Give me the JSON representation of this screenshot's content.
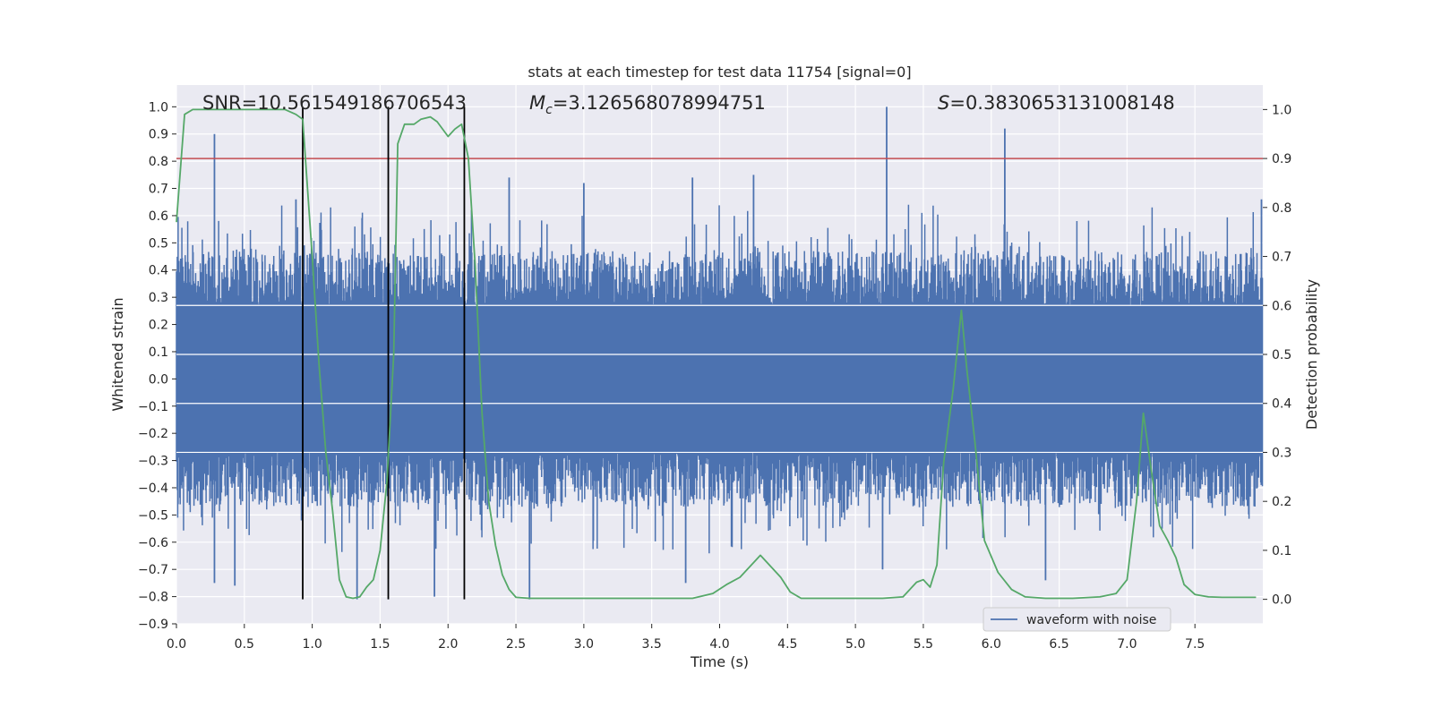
{
  "chart_data": {
    "type": "line",
    "title": "stats at each timestep for test data 11754 [signal=0]",
    "xlabel": "Time (s)",
    "ylabel_left": "Whitened strain",
    "ylabel_right": "Detection probability",
    "xlim": [
      0,
      8
    ],
    "ylim_left": [
      -0.9,
      1.08
    ],
    "ylim_right": [
      -0.05,
      1.05
    ],
    "x_ticks": [
      0.0,
      0.5,
      1.0,
      1.5,
      2.0,
      2.5,
      3.0,
      3.5,
      4.0,
      4.5,
      5.0,
      5.5,
      6.0,
      6.5,
      7.0,
      7.5
    ],
    "x_tick_labels": [
      "0.0",
      "0.5",
      "1.0",
      "1.5",
      "2.0",
      "2.5",
      "3.0",
      "3.5",
      "4.0",
      "4.5",
      "5.0",
      "5.5",
      "6.0",
      "6.5",
      "7.0",
      "7.5"
    ],
    "y_left_ticks": [
      1.0,
      0.9,
      0.8,
      0.7,
      0.6,
      0.5,
      0.4,
      0.3,
      0.2,
      0.1,
      0.0,
      -0.1,
      -0.2,
      -0.3,
      -0.4,
      -0.5,
      -0.6,
      -0.7,
      -0.8,
      -0.9
    ],
    "y_left_tick_labels": [
      "1.0",
      "0.9",
      "0.8",
      "0.7",
      "0.6",
      "0.5",
      "0.4",
      "0.3",
      "0.2",
      "0.1",
      "0.0",
      "−0.1",
      "−0.2",
      "−0.3",
      "−0.4",
      "−0.5",
      "−0.6",
      "−0.7",
      "−0.8",
      "−0.9"
    ],
    "y_right_ticks": [
      1.0,
      0.9,
      0.8,
      0.7,
      0.6,
      0.5,
      0.4,
      0.3,
      0.2,
      0.1,
      0.0
    ],
    "y_right_tick_labels": [
      "1.0",
      "0.9",
      "0.8",
      "0.7",
      "0.6",
      "0.5",
      "0.4",
      "0.3",
      "0.2",
      "0.1",
      "0.0"
    ],
    "grid": true,
    "annotations": {
      "snr": "SNR=10.561549186706543",
      "mc_symbol": "M",
      "mc_sub": "c",
      "mc_value": "=3.126568078994751",
      "s_symbol": "S",
      "s_value": "=0.3830653131008148"
    },
    "legend": {
      "placement": "lower-right",
      "entries": [
        "waveform with noise"
      ]
    },
    "threshold_line": {
      "value": 0.9,
      "axis": "right",
      "color": "#c44e52"
    },
    "vertical_markers": {
      "x": [
        0.93,
        1.56,
        2.12
      ],
      "y_top": 1.0,
      "y_bottom": -0.81,
      "color": "#000000"
    },
    "series": [
      {
        "name": "waveform with noise",
        "axis": "left",
        "color": "#4c72b0",
        "envelope_core": [
          -0.27,
          0.27
        ],
        "noise_amplitude": 0.45,
        "spikes": [
          {
            "x": 0.28,
            "y": 0.9
          },
          {
            "x": 5.23,
            "y": 1.0
          },
          {
            "x": 6.1,
            "y": 0.92
          },
          {
            "x": 1.33,
            "y": -0.81
          },
          {
            "x": 2.6,
            "y": -0.81
          },
          {
            "x": 0.43,
            "y": -0.76
          },
          {
            "x": 0.28,
            "y": -0.75
          },
          {
            "x": 3.75,
            "y": -0.75
          },
          {
            "x": 1.9,
            "y": -0.8
          },
          {
            "x": 5.2,
            "y": -0.7
          },
          {
            "x": 6.4,
            "y": -0.74
          },
          {
            "x": 0.88,
            "y": 0.66
          },
          {
            "x": 2.45,
            "y": 0.74
          },
          {
            "x": 3.0,
            "y": 0.72
          },
          {
            "x": 3.8,
            "y": 0.74
          },
          {
            "x": 4.25,
            "y": 0.75
          },
          {
            "x": 7.99,
            "y": 0.66
          }
        ]
      },
      {
        "name": "",
        "axis": "right",
        "color": "#55a868",
        "x": [
          0.0,
          0.06,
          0.12,
          0.2,
          0.3,
          0.4,
          0.5,
          0.6,
          0.7,
          0.8,
          0.88,
          0.93,
          1.0,
          1.05,
          1.1,
          1.15,
          1.2,
          1.25,
          1.3,
          1.35,
          1.4,
          1.45,
          1.5,
          1.55,
          1.6,
          1.63,
          1.68,
          1.75,
          1.8,
          1.87,
          1.92,
          2.0,
          2.05,
          2.1,
          2.15,
          2.2,
          2.25,
          2.3,
          2.35,
          2.4,
          2.45,
          2.5,
          2.6,
          2.8,
          3.0,
          3.2,
          3.4,
          3.6,
          3.8,
          3.95,
          4.05,
          4.15,
          4.25,
          4.3,
          4.35,
          4.45,
          4.52,
          4.6,
          4.8,
          5.0,
          5.2,
          5.35,
          5.45,
          5.5,
          5.55,
          5.6,
          5.65,
          5.72,
          5.78,
          5.82,
          5.88,
          5.95,
          6.05,
          6.15,
          6.25,
          6.4,
          6.6,
          6.8,
          6.92,
          7.0,
          7.07,
          7.12,
          7.18,
          7.24,
          7.3,
          7.36,
          7.42,
          7.5,
          7.6,
          7.7,
          7.8,
          7.95
        ],
        "values": [
          0.77,
          0.99,
          1.0,
          1.0,
          1.0,
          1.0,
          1.0,
          1.0,
          1.0,
          1.0,
          0.99,
          0.98,
          0.7,
          0.48,
          0.3,
          0.18,
          0.04,
          0.005,
          0.002,
          0.005,
          0.025,
          0.04,
          0.1,
          0.24,
          0.5,
          0.93,
          0.97,
          0.97,
          0.98,
          0.985,
          0.975,
          0.945,
          0.96,
          0.97,
          0.9,
          0.68,
          0.38,
          0.2,
          0.11,
          0.05,
          0.02,
          0.004,
          0.002,
          0.002,
          0.002,
          0.002,
          0.002,
          0.002,
          0.002,
          0.012,
          0.03,
          0.045,
          0.075,
          0.09,
          0.075,
          0.045,
          0.015,
          0.002,
          0.002,
          0.002,
          0.002,
          0.005,
          0.035,
          0.04,
          0.025,
          0.07,
          0.28,
          0.43,
          0.59,
          0.47,
          0.32,
          0.12,
          0.055,
          0.02,
          0.005,
          0.002,
          0.002,
          0.005,
          0.012,
          0.04,
          0.2,
          0.38,
          0.26,
          0.15,
          0.12,
          0.085,
          0.03,
          0.01,
          0.005,
          0.004,
          0.004,
          0.004
        ]
      }
    ]
  }
}
